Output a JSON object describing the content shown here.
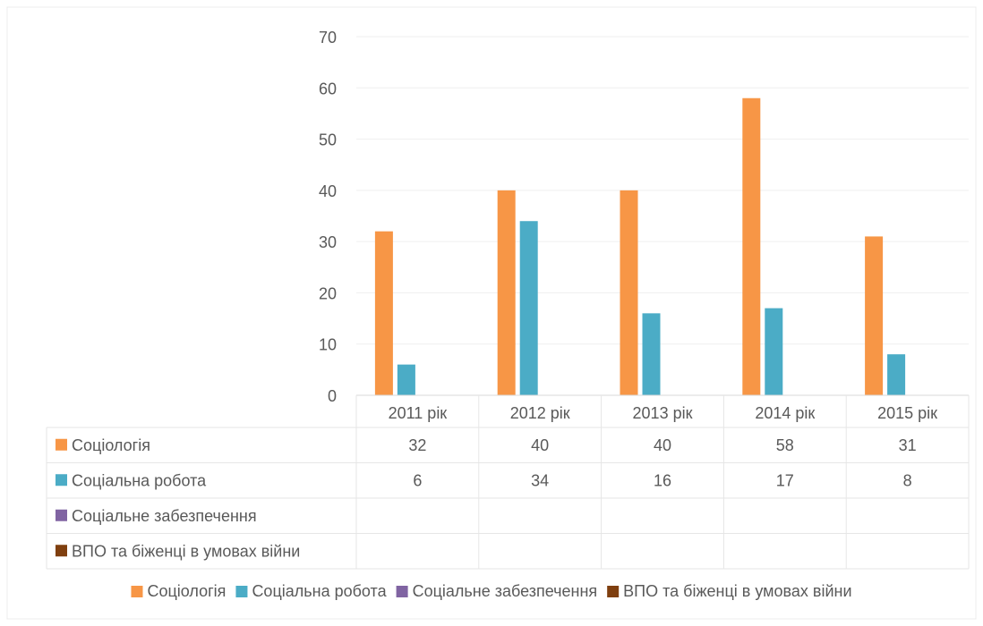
{
  "chart_data": {
    "type": "bar",
    "categories": [
      "2011 рік",
      "2012 рік",
      "2013 рік",
      "2014 рік",
      "2015 рік"
    ],
    "series": [
      {
        "name": "Соціологія",
        "values": [
          32,
          40,
          40,
          58,
          31
        ],
        "color": "#F79646"
      },
      {
        "name": "Соціальна робота",
        "values": [
          6,
          34,
          16,
          17,
          8
        ],
        "color": "#4BACC6"
      },
      {
        "name": "Соціальне забезпечення",
        "values": [
          null,
          null,
          null,
          null,
          null
        ],
        "color": "#8064A2"
      },
      {
        "name": "ВПО та біженці в умовах війни",
        "values": [
          null,
          null,
          null,
          null,
          null
        ],
        "color": "#7F3F0F"
      }
    ],
    "yticks": [
      "0",
      "10",
      "20",
      "30",
      "40",
      "50",
      "60",
      "70"
    ],
    "ylim": [
      0,
      70
    ],
    "grid": true,
    "legend_position": "bottom",
    "data_table": true
  }
}
